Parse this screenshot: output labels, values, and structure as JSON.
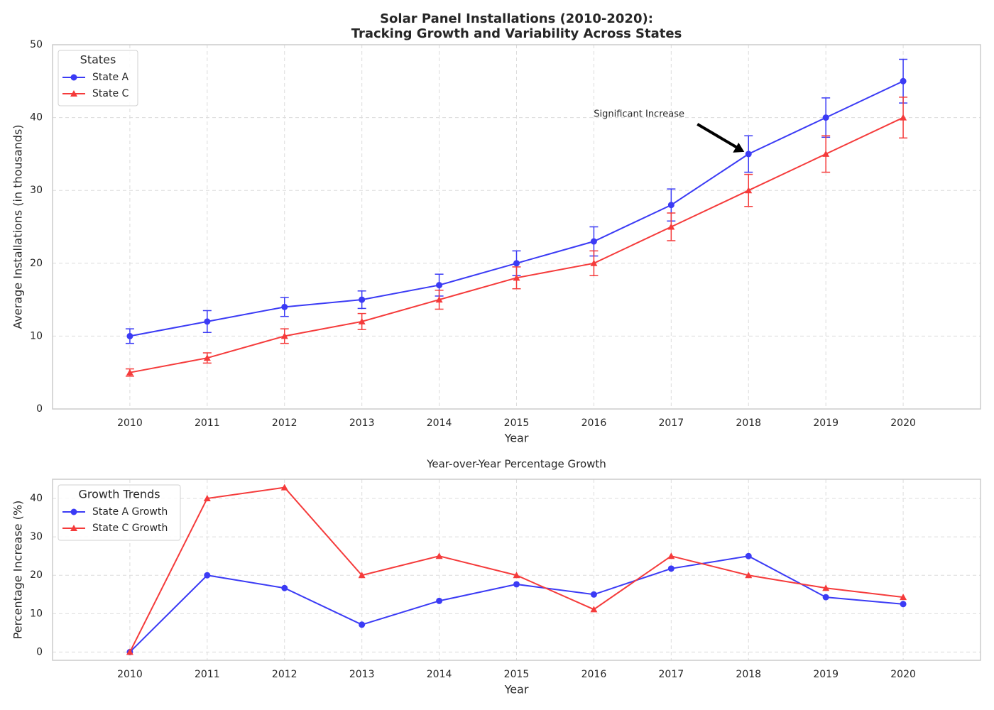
{
  "chart_data": [
    {
      "type": "line",
      "title": [
        "Solar Panel Installations (2010-2020):",
        "Tracking Growth and Variability Across States"
      ],
      "x_label": "Year",
      "y_label": "Average Installations (in thousands)",
      "x": [
        2010,
        2011,
        2012,
        2013,
        2014,
        2015,
        2016,
        2017,
        2018,
        2019,
        2020
      ],
      "xlim": [
        2009,
        2021
      ],
      "xticks": [
        2010,
        2011,
        2012,
        2013,
        2014,
        2015,
        2016,
        2017,
        2018,
        2019,
        2020
      ],
      "ylim": [
        0,
        50
      ],
      "yticks": [
        0,
        10,
        20,
        30,
        40,
        50
      ],
      "grid": true,
      "legend_title": "States",
      "legend": "upper left",
      "series": [
        {
          "name": "State A",
          "color": "#3b3bf5",
          "marker": "o",
          "values": [
            10,
            12,
            14,
            15,
            17,
            20,
            23,
            28,
            35,
            40,
            45
          ],
          "errors": [
            1,
            1.5,
            1.3,
            1.2,
            1.5,
            1.7,
            2,
            2.2,
            2.5,
            2.7,
            3
          ]
        },
        {
          "name": "State C",
          "color": "#f53b3b",
          "marker": "^",
          "values": [
            5,
            7,
            10,
            12,
            15,
            18,
            20,
            25,
            30,
            35,
            40
          ],
          "errors": [
            0.5,
            0.7,
            1,
            1.1,
            1.3,
            1.5,
            1.7,
            1.9,
            2.2,
            2.5,
            2.8
          ]
        }
      ],
      "annotations": [
        {
          "text": "Significant Increase",
          "x": 2018,
          "y": 35
        }
      ]
    },
    {
      "type": "line",
      "title": "Year-over-Year Percentage Growth",
      "x_label": "Year",
      "y_label": "Percentage Increase (%)",
      "x": [
        2010,
        2011,
        2012,
        2013,
        2014,
        2015,
        2016,
        2017,
        2018,
        2019,
        2020
      ],
      "xlim": [
        2009,
        2021
      ],
      "xticks": [
        2010,
        2011,
        2012,
        2013,
        2014,
        2015,
        2016,
        2017,
        2018,
        2019,
        2020
      ],
      "ylim": [
        -2.14,
        45
      ],
      "yticks": [
        0,
        10,
        20,
        30,
        40
      ],
      "grid": true,
      "legend_title": "Growth Trends",
      "legend": "upper left",
      "series": [
        {
          "name": "State A Growth",
          "color": "#3b3bf5",
          "marker": "o",
          "values": [
            0,
            20,
            16.67,
            7.14,
            13.33,
            17.65,
            15,
            21.74,
            25,
            14.29,
            12.5
          ]
        },
        {
          "name": "State C Growth",
          "color": "#f53b3b",
          "marker": "^",
          "values": [
            0,
            40,
            42.86,
            20,
            25,
            20,
            11.11,
            25,
            20,
            16.67,
            14.29
          ]
        }
      ]
    }
  ]
}
